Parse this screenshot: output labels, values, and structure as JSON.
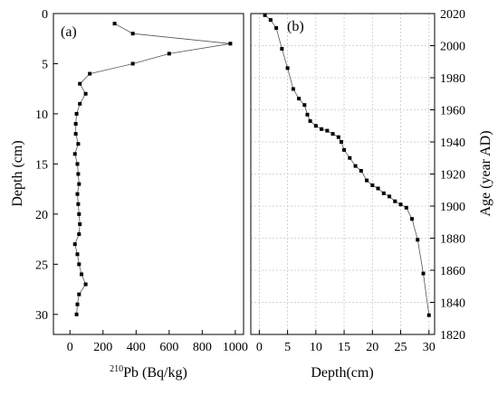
{
  "chart_data": [
    {
      "type": "line",
      "panel_label": "(a)",
      "xlabel_sup": "210",
      "xlabel_main": "Pb (Bq/kg)",
      "ylabel": "Depth (cm)",
      "xlim": [
        -100,
        1050
      ],
      "ylim": [
        0,
        32
      ],
      "y_inverted": true,
      "xticks": [
        0,
        200,
        400,
        600,
        800,
        1000
      ],
      "yticks": [
        0,
        5,
        10,
        15,
        20,
        25,
        30
      ],
      "grid": false,
      "points": [
        {
          "x": 270,
          "y": 1
        },
        {
          "x": 380,
          "y": 2
        },
        {
          "x": 970,
          "y": 3
        },
        {
          "x": 600,
          "y": 4
        },
        {
          "x": 380,
          "y": 5
        },
        {
          "x": 120,
          "y": 6
        },
        {
          "x": 60,
          "y": 7
        },
        {
          "x": 95,
          "y": 8
        },
        {
          "x": 60,
          "y": 9
        },
        {
          "x": 40,
          "y": 10
        },
        {
          "x": 35,
          "y": 11
        },
        {
          "x": 35,
          "y": 12
        },
        {
          "x": 50,
          "y": 13
        },
        {
          "x": 30,
          "y": 14
        },
        {
          "x": 45,
          "y": 15
        },
        {
          "x": 50,
          "y": 16
        },
        {
          "x": 55,
          "y": 17
        },
        {
          "x": 45,
          "y": 18
        },
        {
          "x": 50,
          "y": 19
        },
        {
          "x": 55,
          "y": 20
        },
        {
          "x": 60,
          "y": 21
        },
        {
          "x": 55,
          "y": 22
        },
        {
          "x": 30,
          "y": 23
        },
        {
          "x": 45,
          "y": 24
        },
        {
          "x": 55,
          "y": 25
        },
        {
          "x": 70,
          "y": 26
        },
        {
          "x": 95,
          "y": 27
        },
        {
          "x": 55,
          "y": 28
        },
        {
          "x": 45,
          "y": 29
        },
        {
          "x": 40,
          "y": 30
        }
      ]
    },
    {
      "type": "line",
      "panel_label": "(b)",
      "xlabel": "Depth(cm)",
      "ylabel": "Age (year AD)",
      "xlim": [
        -1.5,
        31
      ],
      "ylim": [
        1820,
        2020
      ],
      "yaxis_side": "right",
      "xticks": [
        0,
        5,
        10,
        15,
        20,
        25,
        30
      ],
      "yticks": [
        1820,
        1840,
        1860,
        1880,
        1900,
        1920,
        1940,
        1960,
        1980,
        2000,
        2020
      ],
      "grid": true,
      "points": [
        {
          "x": 1,
          "y": 2019
        },
        {
          "x": 2,
          "y": 2016
        },
        {
          "x": 3,
          "y": 2011
        },
        {
          "x": 4,
          "y": 1998
        },
        {
          "x": 5,
          "y": 1986
        },
        {
          "x": 6,
          "y": 1973
        },
        {
          "x": 7,
          "y": 1967
        },
        {
          "x": 8,
          "y": 1963
        },
        {
          "x": 8.5,
          "y": 1957
        },
        {
          "x": 9,
          "y": 1953
        },
        {
          "x": 10,
          "y": 1950
        },
        {
          "x": 11,
          "y": 1948
        },
        {
          "x": 12,
          "y": 1947
        },
        {
          "x": 13,
          "y": 1945
        },
        {
          "x": 14,
          "y": 1943
        },
        {
          "x": 14.5,
          "y": 1940
        },
        {
          "x": 15,
          "y": 1935
        },
        {
          "x": 16,
          "y": 1930
        },
        {
          "x": 17,
          "y": 1925
        },
        {
          "x": 18,
          "y": 1922
        },
        {
          "x": 19,
          "y": 1916
        },
        {
          "x": 20,
          "y": 1913
        },
        {
          "x": 21,
          "y": 1911
        },
        {
          "x": 22,
          "y": 1908
        },
        {
          "x": 23,
          "y": 1906
        },
        {
          "x": 24,
          "y": 1903
        },
        {
          "x": 25,
          "y": 1901
        },
        {
          "x": 26,
          "y": 1899
        },
        {
          "x": 27,
          "y": 1892
        },
        {
          "x": 28,
          "y": 1879
        },
        {
          "x": 29,
          "y": 1858
        },
        {
          "x": 30,
          "y": 1832
        }
      ]
    }
  ]
}
